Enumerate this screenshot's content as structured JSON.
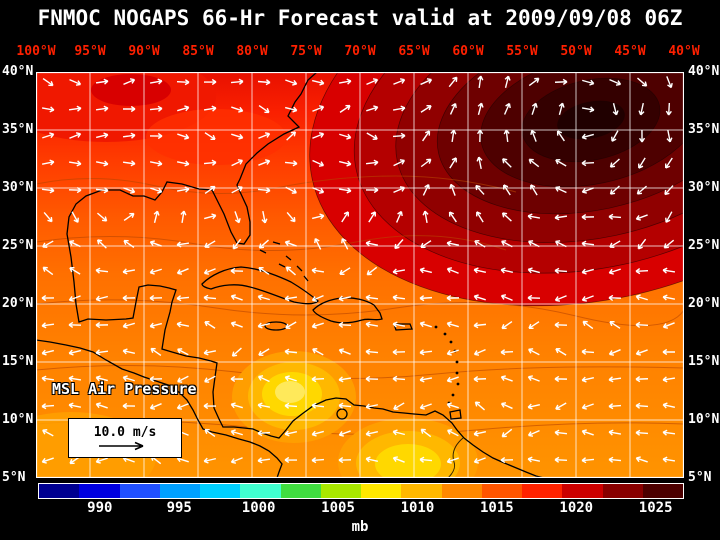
{
  "title": "FNMOC NOGAPS 66-Hr Forecast valid at 2009/09/08 06Z",
  "map": {
    "lon_labels": [
      "100°W",
      "95°W",
      "90°W",
      "85°W",
      "80°W",
      "75°W",
      "70°W",
      "65°W",
      "60°W",
      "55°W",
      "50°W",
      "45°W",
      "40°W"
    ],
    "lat_labels": [
      "40°N",
      "35°N",
      "30°N",
      "25°N",
      "20°N",
      "15°N",
      "10°N",
      "5°N"
    ],
    "field_label": "MSL Air Pressure",
    "wind_scale_label": "10.0 m/s"
  },
  "colorbar": {
    "unit": "mb",
    "tick_labels": [
      "990",
      "995",
      "1000",
      "1005",
      "1010",
      "1015",
      "1020",
      "1025"
    ],
    "colors": [
      "#000090",
      "#0000e0",
      "#2050ff",
      "#00a0ff",
      "#00d0ff",
      "#40ffd0",
      "#40dd40",
      "#a8e800",
      "#ffe800",
      "#ffb800",
      "#ff8800",
      "#ff5500",
      "#ff2200",
      "#cc0000",
      "#880000",
      "#4c0000"
    ]
  },
  "chart_data": {
    "type": "heatmap",
    "title": "FNMOC NOGAPS 66-Hr Forecast valid at 2009/09/08 06Z",
    "field": "MSL Air Pressure",
    "units": "mb",
    "scale_ticks": [
      990,
      995,
      1000,
      1005,
      1010,
      1015,
      1020,
      1025
    ],
    "lon_range": [
      "100W",
      "40W"
    ],
    "lat_range": [
      "5N",
      "40N"
    ],
    "grid_interval_deg": 5,
    "legend": "wind vector reference 10.0 m/s",
    "features": {
      "high_pressure": "dark-red maximum (>1025 mb) centered in upper-right quadrant near 50W/37N with clockwise wind circulation",
      "low_pressure": "yellow minima (~1005 mb) over Panama/Colombia region and northern South America",
      "gradient": "pressure decreases from north (red, ~1020 mb) to tropics (orange/yellow, ~1005-1012 mb)"
    }
  }
}
